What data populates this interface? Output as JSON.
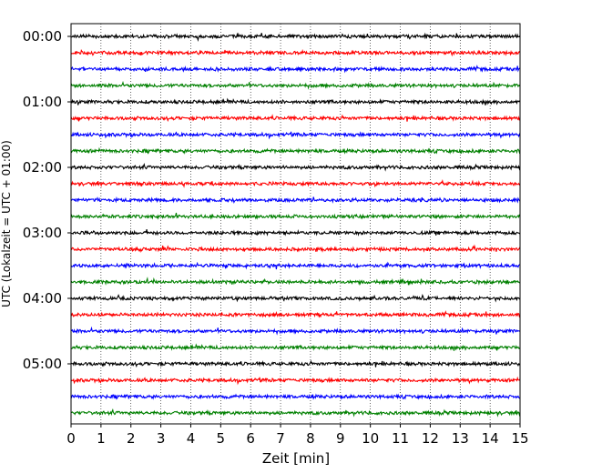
{
  "chart_data": {
    "type": "line",
    "title": "",
    "xlabel": "Zeit  [min]",
    "ylabel": "UTC (Lokalzeit = UTC + 01:00)",
    "xlim": [
      0,
      15
    ],
    "x_ticks": [
      "0",
      "1",
      "2",
      "3",
      "4",
      "5",
      "6",
      "7",
      "8",
      "9",
      "10",
      "11",
      "12",
      "13",
      "14",
      "15"
    ],
    "y_tick_labels": [
      "00:00",
      "01:00",
      "02:00",
      "03:00",
      "04:00",
      "05:00"
    ],
    "row_interval_minutes": 15,
    "row_count": 24,
    "first_row": "00:00",
    "trace_colors": [
      "#000000",
      "#ff0000",
      "#0000ff",
      "#008000"
    ],
    "vertical_grid": "dotted, every 1 min",
    "horizontal_grid": false,
    "legend": "none",
    "series_description": "Seismogram helicorder: one noisy trace per 15-minute row from 00:00 to 05:45 UTC, colors cycling black, red, blue, green"
  }
}
